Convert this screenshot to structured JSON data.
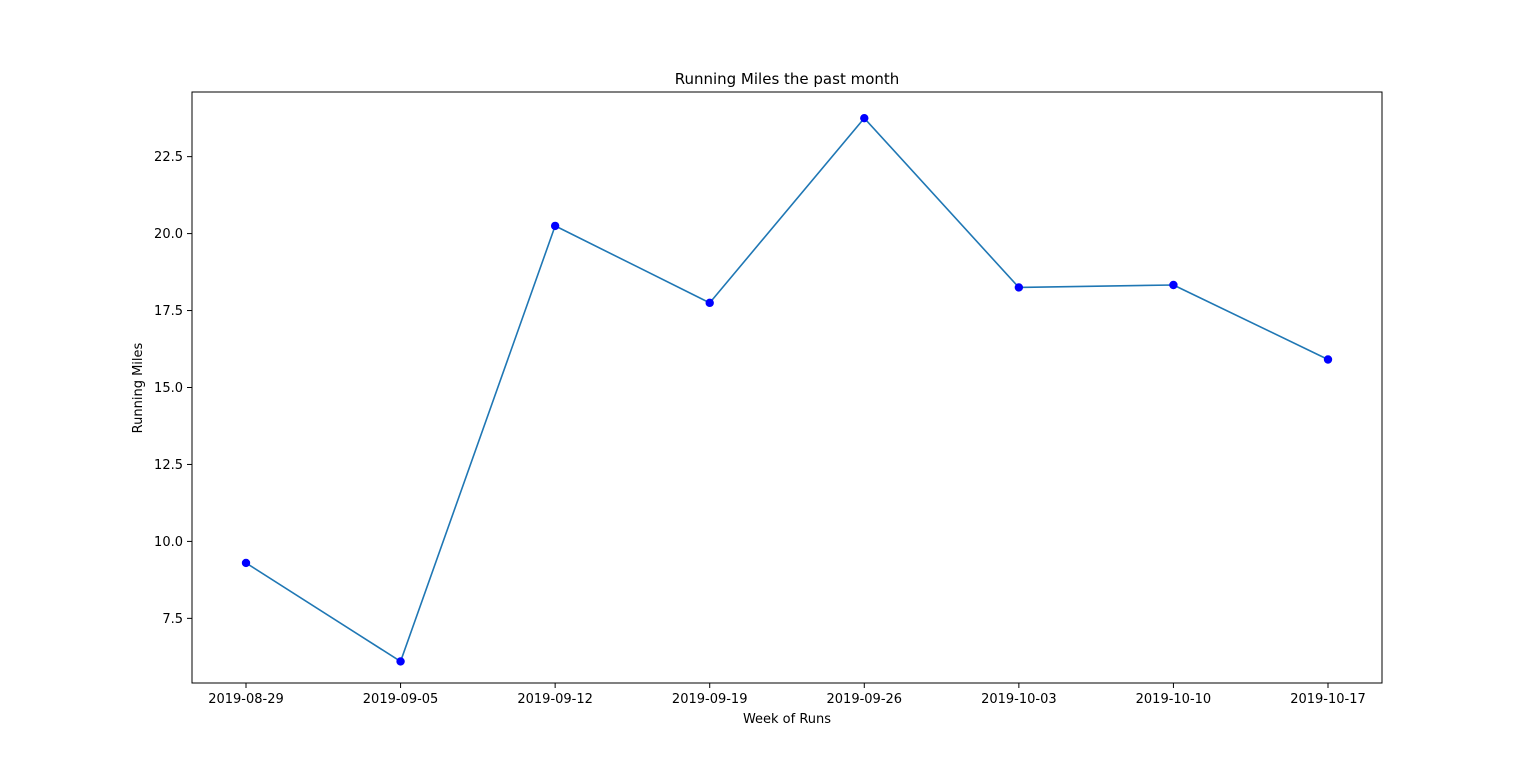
{
  "chart_data": {
    "type": "line",
    "title": "Running Miles the past month",
    "xlabel": "Week of Runs",
    "ylabel": "Running Miles",
    "x": [
      "2019-08-29",
      "2019-09-05",
      "2019-09-12",
      "2019-09-19",
      "2019-09-26",
      "2019-10-03",
      "2019-10-10",
      "2019-10-17"
    ],
    "series": [
      {
        "values": [
          9.3,
          6.1,
          20.25,
          17.75,
          23.75,
          18.25,
          18.33,
          15.91
        ]
      }
    ],
    "y_ticks": [
      "7.5",
      "10.0",
      "12.5",
      "15.0",
      "17.5",
      "20.0",
      "22.5"
    ],
    "ylim": [
      5.4,
      24.6
    ],
    "grid": false,
    "legend": "none",
    "colors": {
      "line": "#1f77b4",
      "marker": "#0000ff",
      "axes": "#000000"
    }
  }
}
